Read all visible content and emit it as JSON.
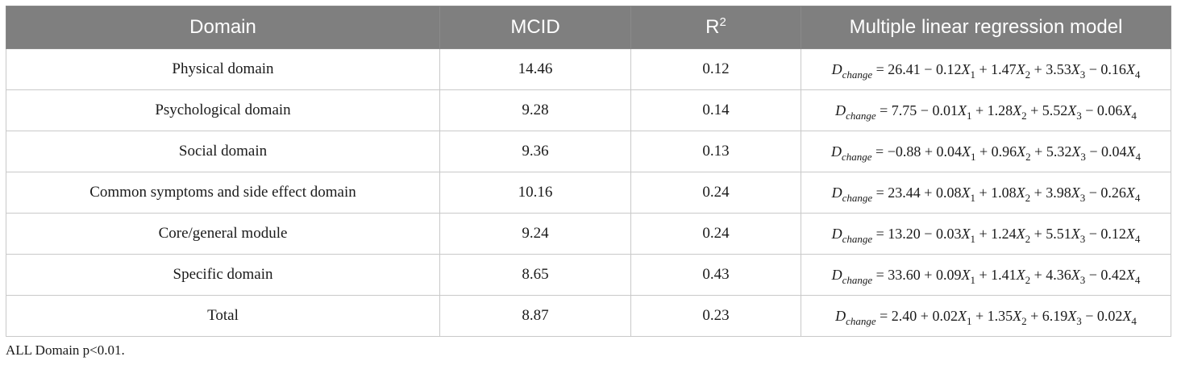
{
  "table": {
    "headers": {
      "domain": "Domain",
      "mcid": "MCID",
      "r2_base": "R",
      "r2_sup": "2",
      "model": "Multiple linear regression model"
    },
    "rows": [
      {
        "domain": "Physical domain",
        "mcid": "14.46",
        "r2": "0.12",
        "formula": {
          "lhs": "D",
          "lhs_sub": "change",
          "eq": "=",
          "c0": "26.41",
          "op1": "−",
          "c1": "0.12",
          "op2": "+",
          "c2": "1.47",
          "op3": "+",
          "c3": "3.53",
          "op4": "−",
          "c4": "0.16"
        }
      },
      {
        "domain": "Psychological domain",
        "mcid": "9.28",
        "r2": "0.14",
        "formula": {
          "lhs": "D",
          "lhs_sub": "change",
          "eq": "=",
          "c0": "7.75",
          "op1": "−",
          "c1": "0.01",
          "op2": "+",
          "c2": "1.28",
          "op3": "+",
          "c3": "5.52",
          "op4": "−",
          "c4": "0.06"
        }
      },
      {
        "domain": "Social domain",
        "mcid": "9.36",
        "r2": "0.13",
        "formula": {
          "lhs": "D",
          "lhs_sub": "change",
          "eq": "=",
          "c0": "−0.88",
          "op1": "+",
          "c1": "0.04",
          "op2": "+",
          "c2": "0.96",
          "op3": "+",
          "c3": "5.32",
          "op4": "−",
          "c4": "0.04"
        }
      },
      {
        "domain": "Common symptoms and side effect domain",
        "mcid": "10.16",
        "r2": "0.24",
        "formula": {
          "lhs": "D",
          "lhs_sub": "change",
          "eq": "=",
          "c0": "23.44",
          "op1": "+",
          "c1": "0.08",
          "op2": "+",
          "c2": "1.08",
          "op3": "+",
          "c3": "3.98",
          "op4": "−",
          "c4": "0.26"
        }
      },
      {
        "domain": "Core/general module",
        "mcid": "9.24",
        "r2": "0.24",
        "formula": {
          "lhs": "D",
          "lhs_sub": "change",
          "eq": "=",
          "c0": "13.20",
          "op1": "−",
          "c1": "0.03",
          "op2": "+",
          "c2": "1.24",
          "op3": "+",
          "c3": "5.51",
          "op4": "−",
          "c4": "0.12"
        }
      },
      {
        "domain": "Specific domain",
        "mcid": "8.65",
        "r2": "0.43",
        "formula": {
          "lhs": "D",
          "lhs_sub": "change",
          "eq": "=",
          "c0": "33.60",
          "op1": "+",
          "c1": "0.09",
          "op2": "+",
          "c2": "1.41",
          "op3": "+",
          "c3": "4.36",
          "op4": "−",
          "c4": "0.42"
        }
      },
      {
        "domain": "Total",
        "mcid": "8.87",
        "r2": "0.23",
        "formula": {
          "lhs": "D",
          "lhs_sub": "change",
          "eq": "=",
          "c0": "2.40",
          "op1": "+",
          "c1": "0.02",
          "op2": "+",
          "c2": "1.35",
          "op3": "+",
          "c3": "6.19",
          "op4": "−",
          "c4": "0.02"
        }
      }
    ],
    "variable": {
      "name": "X",
      "subs": [
        "1",
        "2",
        "3",
        "4"
      ]
    }
  },
  "footnote": "ALL Domain p<0.01."
}
